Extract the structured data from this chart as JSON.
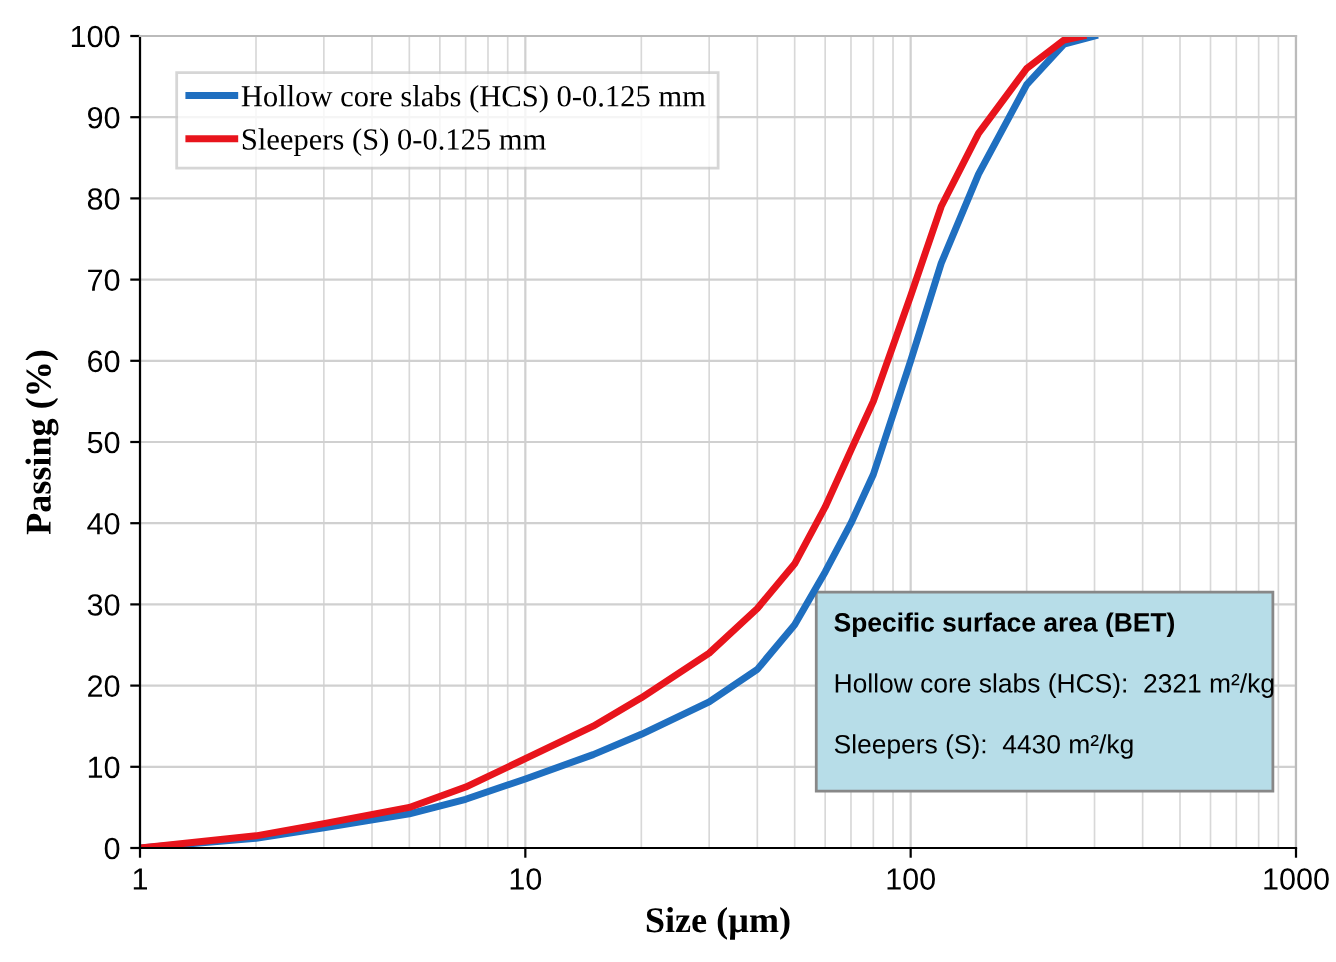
{
  "chart_data": {
    "type": "line",
    "xlabel": "Size (µm)",
    "ylabel": "Passing (%)",
    "series": [
      {
        "name": "Hollow core slabs (HCS) 0-0.125 mm",
        "color": "#1f6fc0",
        "x": [
          1,
          2,
          3,
          5,
          7,
          10,
          15,
          20,
          30,
          40,
          50,
          60,
          70,
          80,
          100,
          120,
          150,
          200,
          250,
          300
        ],
        "values": [
          0,
          1.2,
          2.5,
          4.2,
          6,
          8.5,
          11.5,
          14,
          18,
          22,
          27.5,
          34,
          40,
          46,
          60,
          72,
          83,
          94,
          99,
          100
        ]
      },
      {
        "name": "Sleepers (S) 0-0.125 mm",
        "color": "#e8141c",
        "x": [
          1,
          2,
          3,
          5,
          7,
          10,
          15,
          20,
          30,
          40,
          50,
          60,
          70,
          80,
          100,
          120,
          150,
          200,
          250,
          280
        ],
        "values": [
          0,
          1.5,
          3,
          5,
          7.5,
          11,
          15,
          18.5,
          24,
          29.5,
          35,
          42,
          49,
          55,
          68,
          79,
          88,
          96,
          99.5,
          100
        ]
      }
    ],
    "xlim": [
      1,
      1000
    ],
    "xticks": [
      1,
      10,
      100,
      1000
    ],
    "ylim": [
      0,
      100
    ],
    "yticks": [
      0,
      10,
      20,
      30,
      40,
      50,
      60,
      70,
      80,
      90,
      100
    ],
    "log": "x",
    "grid": true,
    "legend": "top left",
    "marker": "none",
    "line_style": "solid",
    "annotations": [
      "Specific surface area (BET)",
      "Hollow core slabs (HCS):  2321 m²/kg",
      "Sleepers (S):  4430 m²/kg"
    ]
  }
}
